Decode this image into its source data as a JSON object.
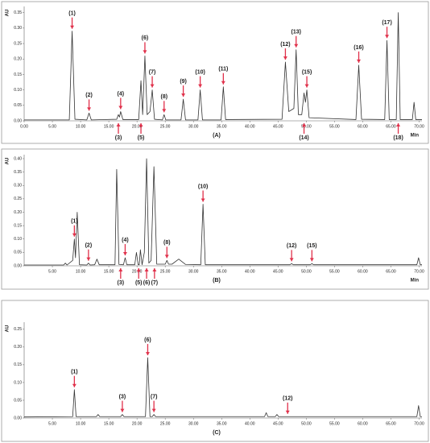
{
  "chart_data": [
    {
      "type": "line",
      "ylabel": "AU",
      "xlabel": "Min",
      "caption": "(A)",
      "xlim": [
        0,
        70.5
      ],
      "ylim": [
        0,
        0.37
      ],
      "xticks": [
        {
          "value": 0,
          "label": "0.00"
        },
        {
          "value": 5,
          "label": "5.00"
        },
        {
          "value": 10,
          "label": "10.00"
        },
        {
          "value": 15,
          "label": "15.00"
        },
        {
          "value": 20,
          "label": "20.00"
        },
        {
          "value": 25,
          "label": "25.00"
        },
        {
          "value": 30,
          "label": "30.00"
        },
        {
          "value": 35,
          "label": "35.00"
        },
        {
          "value": 40,
          "label": "40.00"
        },
        {
          "value": 45,
          "label": "45.00"
        },
        {
          "value": 50,
          "label": "50.00"
        },
        {
          "value": 55,
          "label": "55.00"
        },
        {
          "value": 60,
          "label": "60.00"
        },
        {
          "value": 65,
          "label": "65.00"
        },
        {
          "value": 70,
          "label": "70.00"
        }
      ],
      "yticks": [
        {
          "value": 0,
          "label": "0.00"
        },
        0.05,
        {
          "value": 0.1,
          "label": "0.10"
        },
        0.15,
        {
          "value": 0.2,
          "label": "0.20"
        },
        0.25,
        {
          "value": 0.3,
          "label": "0.30"
        },
        0.35
      ],
      "series": [
        {
          "color": "#333333",
          "x": [
            0,
            8.0,
            8.5,
            9.0,
            11.1,
            11.5,
            11.9,
            16.4,
            16.7,
            16.9,
            17.1,
            17.5,
            20.3,
            20.7,
            21.0,
            21.4,
            21.8,
            22.3,
            22.7,
            23.1,
            24.5,
            24.8,
            25.1,
            27.8,
            28.2,
            28.6,
            30.8,
            31.2,
            31.6,
            34.9,
            35.3,
            35.7,
            45.7,
            46.3,
            46.9,
            47.8,
            48.2,
            48.6,
            49.2,
            49.6,
            49.85,
            50.1,
            50.5,
            58.8,
            59.3,
            59.8,
            63.9,
            64.3,
            64.7,
            65.95,
            66.3,
            66.65,
            68.8,
            69.1,
            69.4,
            70.5
          ],
          "values": [
            0.003,
            0.003,
            0.29,
            0.005,
            0.003,
            0.025,
            0.003,
            0.005,
            0.02,
            0.012,
            0.03,
            0.004,
            0.004,
            0.13,
            0.02,
            0.21,
            0.02,
            0.03,
            0.1,
            0.005,
            0.003,
            0.02,
            0.003,
            0.003,
            0.07,
            0.003,
            0.003,
            0.1,
            0.003,
            0.003,
            0.11,
            0.004,
            0.005,
            0.19,
            0.03,
            0.04,
            0.23,
            0.02,
            0.02,
            0.09,
            0.06,
            0.1,
            0.01,
            0.004,
            0.18,
            0.005,
            0.004,
            0.26,
            0.004,
            0.004,
            0.35,
            0.004,
            0.004,
            0.06,
            0.004,
            0.004
          ]
        }
      ],
      "annotations": [
        {
          "text": "(1)",
          "x": 8.5,
          "y": 0.29,
          "side": "top"
        },
        {
          "text": "(2)",
          "x": 11.5,
          "y": 0.025,
          "side": "top"
        },
        {
          "text": "(3)",
          "x": 16.7,
          "side": "bottom"
        },
        {
          "text": "(4)",
          "x": 17.1,
          "y": 0.03,
          "side": "top"
        },
        {
          "text": "(5)",
          "x": 20.7,
          "side": "bottom"
        },
        {
          "text": "(6)",
          "x": 21.4,
          "y": 0.21,
          "side": "top"
        },
        {
          "text": "(7)",
          "x": 22.7,
          "y": 0.1,
          "side": "top"
        },
        {
          "text": "(8)",
          "x": 24.8,
          "y": 0.02,
          "side": "top"
        },
        {
          "text": "(9)",
          "x": 28.2,
          "y": 0.07,
          "side": "top"
        },
        {
          "text": "(10)",
          "x": 31.2,
          "y": 0.1,
          "side": "top"
        },
        {
          "text": "(11)",
          "x": 35.3,
          "y": 0.11,
          "side": "top"
        },
        {
          "text": "(12)",
          "x": 46.3,
          "y": 0.19,
          "side": "top"
        },
        {
          "text": "(13)",
          "x": 48.2,
          "y": 0.23,
          "side": "top"
        },
        {
          "text": "(14)",
          "x": 49.6,
          "side": "bottom"
        },
        {
          "text": "(15)",
          "x": 50.1,
          "y": 0.1,
          "side": "top"
        },
        {
          "text": "(16)",
          "x": 59.3,
          "y": 0.18,
          "side": "top"
        },
        {
          "text": "(17)",
          "x": 64.3,
          "y": 0.26,
          "side": "top"
        },
        {
          "text": "(18)",
          "x": 66.3,
          "side": "bottom"
        }
      ]
    },
    {
      "type": "line",
      "ylabel": "AU",
      "xlabel": "Min",
      "caption": "(B)",
      "xlim": [
        0,
        70.5
      ],
      "ylim": [
        0,
        0.415
      ],
      "xticks": [
        {
          "value": 5,
          "label": "5.00"
        },
        {
          "value": 10,
          "label": "10.00"
        },
        {
          "value": 15,
          "label": "15.00"
        },
        {
          "value": 20,
          "label": "20.00"
        },
        {
          "value": 25,
          "label": "25.00"
        },
        {
          "value": 30,
          "label": "30.00"
        },
        {
          "value": 35,
          "label": "35.00"
        },
        {
          "value": 40,
          "label": "40.00"
        },
        {
          "value": 45,
          "label": "45.00"
        },
        {
          "value": 50,
          "label": "50.00"
        },
        {
          "value": 55,
          "label": "55.00"
        },
        {
          "value": 60,
          "label": "60.00"
        },
        {
          "value": 65,
          "label": "65.00"
        },
        {
          "value": 70,
          "label": "70.00"
        }
      ],
      "yticks": [
        {
          "value": 0,
          "label": "0.00"
        },
        0.05,
        {
          "value": 0.1,
          "label": "0.10"
        },
        0.15,
        {
          "value": 0.2,
          "label": "0.20"
        },
        0.25,
        {
          "value": 0.3,
          "label": "0.30"
        },
        0.35,
        {
          "value": 0.4,
          "label": "0.40"
        }
      ],
      "series": [
        {
          "color": "#333333",
          "x": [
            0,
            7.0,
            7.3,
            7.6,
            8.6,
            8.9,
            9.1,
            9.4,
            9.8,
            11.1,
            11.4,
            11.7,
            12.5,
            12.9,
            13.3,
            16.1,
            16.4,
            16.8,
            17.6,
            17.9,
            18.2,
            19.6,
            19.9,
            20.2,
            20.4,
            20.6,
            20.9,
            21.3,
            21.7,
            22.1,
            22.5,
            23.0,
            23.5,
            25.0,
            25.3,
            25.6,
            26.2,
            27.4,
            28.6,
            31.3,
            31.7,
            32.1,
            47.1,
            47.4,
            47.7,
            50.7,
            51.0,
            51.3,
            69.6,
            69.9,
            70.2,
            70.5
          ],
          "values": [
            0.003,
            0.003,
            0.01,
            0.003,
            0.02,
            0.1,
            0.03,
            0.2,
            0.004,
            0.003,
            0.01,
            0.003,
            0.004,
            0.025,
            0.004,
            0.004,
            0.36,
            0.005,
            0.004,
            0.03,
            0.004,
            0.004,
            0.05,
            0.004,
            0.004,
            0.06,
            0.004,
            0.05,
            0.4,
            0.01,
            0.02,
            0.37,
            0.006,
            0.006,
            0.02,
            0.006,
            0.006,
            0.025,
            0.005,
            0.004,
            0.23,
            0.004,
            0.004,
            0.008,
            0.004,
            0.004,
            0.008,
            0.004,
            0.004,
            0.03,
            0.004,
            0.004
          ]
        }
      ],
      "annotations": [
        {
          "text": "(1)",
          "x": 8.9,
          "y": 0.1,
          "side": "top"
        },
        {
          "text": "(2)",
          "x": 11.4,
          "y": 0.01,
          "side": "top"
        },
        {
          "text": "(3)",
          "x": 17.1,
          "side": "bottom"
        },
        {
          "text": "(4)",
          "x": 17.9,
          "y": 0.03,
          "side": "top"
        },
        {
          "text": "(5)",
          "x": 20.3,
          "side": "bottom"
        },
        {
          "text": "(6)",
          "x": 21.7,
          "side": "bottom"
        },
        {
          "text": "(7)",
          "x": 23.1,
          "side": "bottom"
        },
        {
          "text": "(8)",
          "x": 25.3,
          "y": 0.02,
          "side": "top"
        },
        {
          "text": "(10)",
          "x": 31.7,
          "y": 0.23,
          "side": "top"
        },
        {
          "text": "(12)",
          "x": 47.4,
          "y": 0.008,
          "side": "top"
        },
        {
          "text": "(15)",
          "x": 51.0,
          "y": 0.008,
          "side": "top"
        }
      ]
    },
    {
      "type": "line",
      "ylabel": "AU",
      "caption": "(C)",
      "xlim": [
        0,
        70.5
      ],
      "ylim": [
        0,
        0.27
      ],
      "xticks": [
        {
          "value": 5,
          "label": "5.00"
        },
        {
          "value": 10,
          "label": "10.00"
        },
        {
          "value": 15,
          "label": "15.00"
        },
        {
          "value": 20,
          "label": "20.00"
        },
        {
          "value": 25,
          "label": "25.00"
        },
        {
          "value": 30,
          "label": "30.00"
        },
        {
          "value": 35,
          "label": "35.00"
        },
        {
          "value": 40,
          "label": "40.00"
        },
        {
          "value": 45,
          "label": "45.00"
        },
        {
          "value": 50,
          "label": "50.00"
        },
        {
          "value": 55,
          "label": "55.00"
        },
        {
          "value": 60,
          "label": "60.00"
        },
        {
          "value": 65,
          "label": "65.00"
        },
        {
          "value": 70,
          "label": "70.00"
        }
      ],
      "yticks": [
        {
          "value": 0,
          "label": "0.00"
        },
        0.05,
        {
          "value": 0.1,
          "label": "0.10"
        },
        0.15,
        {
          "value": 0.2,
          "label": "0.20"
        },
        0.25
      ],
      "series": [
        {
          "color": "#333333",
          "x": [
            0,
            8.6,
            8.9,
            9.2,
            12.8,
            13.1,
            13.4,
            17.1,
            17.4,
            17.7,
            21.5,
            21.9,
            22.3,
            22.7,
            23.0,
            23.3,
            42.6,
            42.9,
            43.2,
            44.5,
            44.8,
            45.1,
            69.6,
            69.9,
            70.2,
            70.5
          ],
          "values": [
            0.003,
            0.004,
            0.08,
            0.004,
            0.004,
            0.01,
            0.004,
            0.004,
            0.01,
            0.004,
            0.004,
            0.17,
            0.004,
            0.004,
            0.01,
            0.004,
            0.004,
            0.015,
            0.004,
            0.004,
            0.01,
            0.004,
            0.004,
            0.035,
            0.004,
            0.004
          ]
        }
      ],
      "annotations": [
        {
          "text": "(1)",
          "x": 8.9,
          "y": 0.08,
          "side": "top"
        },
        {
          "text": "(3)",
          "x": 17.4,
          "y": 0.01,
          "side": "top"
        },
        {
          "text": "(6)",
          "x": 21.9,
          "y": 0.17,
          "side": "top"
        },
        {
          "text": "(7)",
          "x": 23.0,
          "y": 0.01,
          "side": "top"
        },
        {
          "text": "(12)",
          "x": 46.7,
          "y": 0.005,
          "side": "top"
        }
      ]
    }
  ]
}
